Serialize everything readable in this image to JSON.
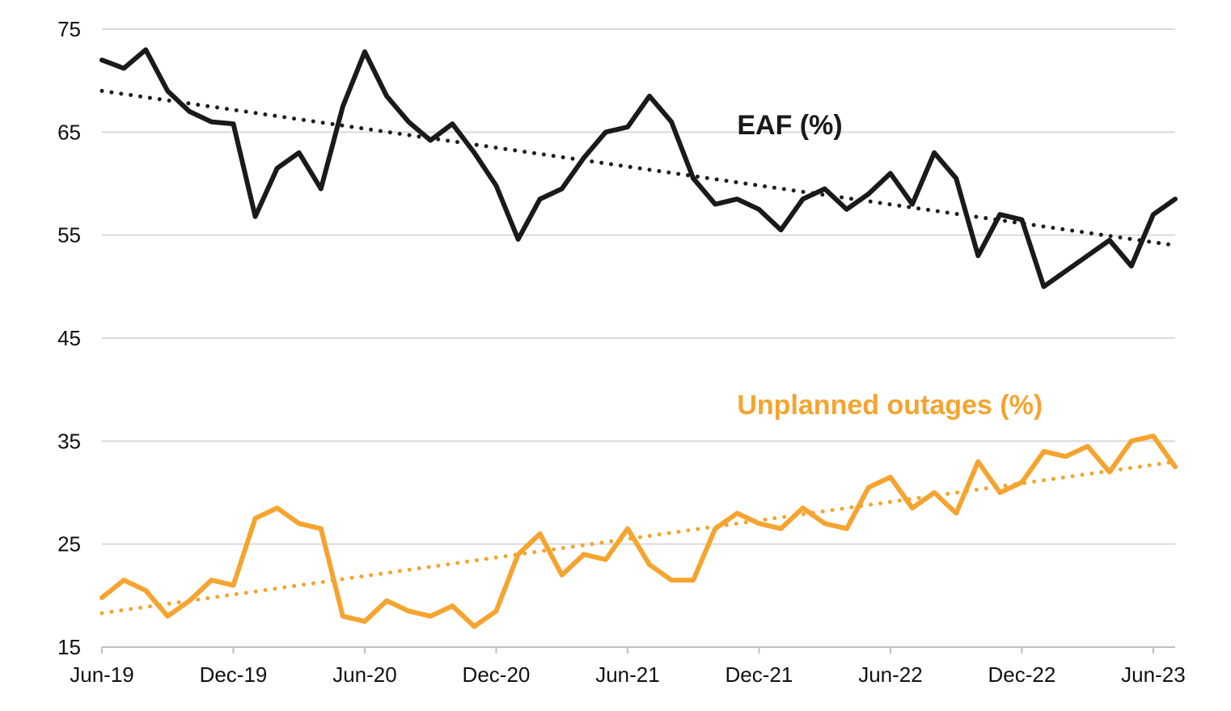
{
  "chart_data": {
    "type": "line",
    "title": "",
    "xlabel": "",
    "ylabel": "",
    "ylim": [
      15,
      75
    ],
    "yticks": [
      15,
      25,
      35,
      45,
      55,
      65,
      75
    ],
    "xlim": [
      "2019-06",
      "2023-07"
    ],
    "x_ticks": [
      {
        "date": "2019-06",
        "label": "Jun-19"
      },
      {
        "date": "2019-12",
        "label": "Dec-19"
      },
      {
        "date": "2020-06",
        "label": "Jun-20"
      },
      {
        "date": "2020-12",
        "label": "Dec-20"
      },
      {
        "date": "2021-06",
        "label": "Jun-21"
      },
      {
        "date": "2021-12",
        "label": "Dec-21"
      },
      {
        "date": "2022-06",
        "label": "Jun-22"
      },
      {
        "date": "2022-12",
        "label": "Dec-22"
      },
      {
        "date": "2023-06",
        "label": "Jun-23"
      }
    ],
    "grid": "horizontal",
    "legend": "inline labels",
    "series": [
      {
        "name": "EAF (%)",
        "color": "#1a1a1a",
        "style": "solid",
        "points": [
          [
            "2019-06",
            72.0
          ],
          [
            "2019-07",
            71.2
          ],
          [
            "2019-08",
            73.0
          ],
          [
            "2019-09",
            69.0
          ],
          [
            "2019-10",
            67.0
          ],
          [
            "2019-11",
            66.0
          ],
          [
            "2019-12",
            65.8
          ],
          [
            "2020-01",
            56.8
          ],
          [
            "2020-02",
            61.5
          ],
          [
            "2020-03",
            63.0
          ],
          [
            "2020-04",
            59.5
          ],
          [
            "2020-05",
            67.5
          ],
          [
            "2020-06",
            72.8
          ],
          [
            "2020-07",
            68.5
          ],
          [
            "2020-08",
            66.0
          ],
          [
            "2020-09",
            64.2
          ],
          [
            "2020-10",
            65.8
          ],
          [
            "2020-11",
            63.0
          ],
          [
            "2020-12",
            59.8
          ],
          [
            "2021-01",
            54.6
          ],
          [
            "2021-02",
            58.5
          ],
          [
            "2021-03",
            59.5
          ],
          [
            "2021-04",
            62.5
          ],
          [
            "2021-05",
            65.0
          ],
          [
            "2021-06",
            65.5
          ],
          [
            "2021-07",
            68.5
          ],
          [
            "2021-08",
            66.0
          ],
          [
            "2021-09",
            60.5
          ],
          [
            "2021-10",
            58.0
          ],
          [
            "2021-11",
            58.5
          ],
          [
            "2021-12",
            57.5
          ],
          [
            "2022-01",
            55.5
          ],
          [
            "2022-02",
            58.5
          ],
          [
            "2022-03",
            59.5
          ],
          [
            "2022-04",
            57.5
          ],
          [
            "2022-05",
            59.0
          ],
          [
            "2022-06",
            61.0
          ],
          [
            "2022-07",
            58.0
          ],
          [
            "2022-08",
            63.0
          ],
          [
            "2022-09",
            60.5
          ],
          [
            "2022-10",
            53.0
          ],
          [
            "2022-11",
            57.0
          ],
          [
            "2022-12",
            56.5
          ],
          [
            "2023-01",
            50.0
          ],
          [
            "2023-02",
            51.5
          ],
          [
            "2023-03",
            53.0
          ],
          [
            "2023-04",
            54.5
          ],
          [
            "2023-05",
            52.0
          ],
          [
            "2023-06",
            57.0
          ],
          [
            "2023-07",
            58.5
          ]
        ]
      },
      {
        "name": "EAF trend",
        "color": "#1a1a1a",
        "style": "dotted",
        "points": [
          [
            "2019-06",
            69.0
          ],
          [
            "2023-07",
            54.0
          ]
        ]
      },
      {
        "name": "Unplanned outages (%)",
        "color": "#f5a42f",
        "style": "solid",
        "points": [
          [
            "2019-06",
            19.8
          ],
          [
            "2019-07",
            21.5
          ],
          [
            "2019-08",
            20.5
          ],
          [
            "2019-09",
            18.0
          ],
          [
            "2019-10",
            19.5
          ],
          [
            "2019-11",
            21.5
          ],
          [
            "2019-12",
            21.0
          ],
          [
            "2020-01",
            27.5
          ],
          [
            "2020-02",
            28.5
          ],
          [
            "2020-03",
            27.0
          ],
          [
            "2020-04",
            26.5
          ],
          [
            "2020-05",
            18.0
          ],
          [
            "2020-06",
            17.5
          ],
          [
            "2020-07",
            19.5
          ],
          [
            "2020-08",
            18.5
          ],
          [
            "2020-09",
            18.0
          ],
          [
            "2020-10",
            19.0
          ],
          [
            "2020-11",
            17.0
          ],
          [
            "2020-12",
            18.5
          ],
          [
            "2021-01",
            24.0
          ],
          [
            "2021-02",
            26.0
          ],
          [
            "2021-03",
            22.0
          ],
          [
            "2021-04",
            24.0
          ],
          [
            "2021-05",
            23.5
          ],
          [
            "2021-06",
            26.5
          ],
          [
            "2021-07",
            23.0
          ],
          [
            "2021-08",
            21.5
          ],
          [
            "2021-09",
            21.5
          ],
          [
            "2021-10",
            26.5
          ],
          [
            "2021-11",
            28.0
          ],
          [
            "2021-12",
            27.0
          ],
          [
            "2022-01",
            26.5
          ],
          [
            "2022-02",
            28.5
          ],
          [
            "2022-03",
            27.0
          ],
          [
            "2022-04",
            26.5
          ],
          [
            "2022-05",
            30.5
          ],
          [
            "2022-06",
            31.5
          ],
          [
            "2022-07",
            28.5
          ],
          [
            "2022-08",
            30.0
          ],
          [
            "2022-09",
            28.0
          ],
          [
            "2022-10",
            33.0
          ],
          [
            "2022-11",
            30.0
          ],
          [
            "2022-12",
            31.0
          ],
          [
            "2023-01",
            34.0
          ],
          [
            "2023-02",
            33.5
          ],
          [
            "2023-03",
            34.5
          ],
          [
            "2023-04",
            32.0
          ],
          [
            "2023-05",
            35.0
          ],
          [
            "2023-06",
            35.5
          ],
          [
            "2023-07",
            32.5
          ]
        ]
      },
      {
        "name": "Unplanned outages trend",
        "color": "#f5a42f",
        "style": "dotted",
        "points": [
          [
            "2019-06",
            18.3
          ],
          [
            "2023-07",
            33.0
          ]
        ]
      }
    ],
    "annotations": [
      {
        "text": "EAF (%)",
        "at": [
          "2021-11",
          64.8
        ],
        "color": "#1a1a1a"
      },
      {
        "text": "Unplanned outages (%)",
        "at": [
          "2021-11",
          37.6
        ],
        "color": "#f5a42f"
      }
    ]
  }
}
